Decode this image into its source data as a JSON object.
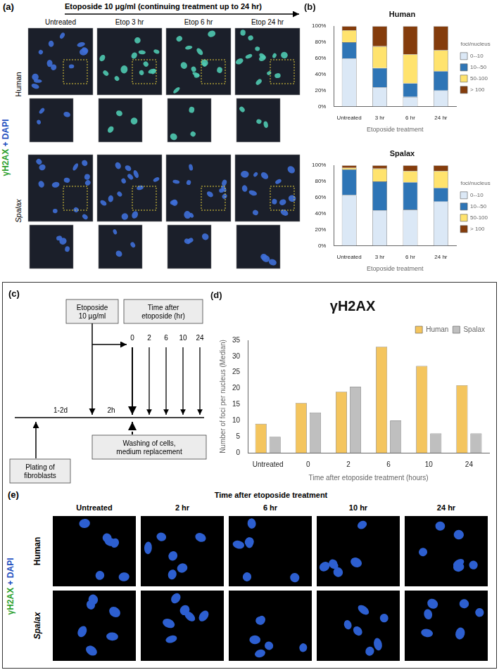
{
  "panel_a": {
    "label": "(a)",
    "header": "Etoposide 10 μg/ml  (continuing treatment up to 24 hr)",
    "stain": [
      "γH2AX",
      "+",
      "DAPI"
    ],
    "rows": [
      "Human",
      "Spalax"
    ],
    "columns": [
      "Untreated",
      "Etop 3 hr",
      "Etop 6 hr",
      "Etop 24 hr"
    ]
  },
  "chart_data": [
    {
      "type": "bar",
      "title": "Human",
      "annotations": [
        "(b)"
      ],
      "x_label": "Etoposide treatment",
      "categories": [
        "Untreated",
        "3 hr",
        "6 hr",
        "24 hr"
      ],
      "series": [
        {
          "name": "0--10",
          "color": "#dbe8f6",
          "values": [
            60,
            24,
            12,
            20
          ]
        },
        {
          "name": "10--50",
          "color": "#2e75b6",
          "values": [
            20,
            24,
            17,
            24
          ]
        },
        {
          "name": "50-100",
          "color": "#ffe36e",
          "values": [
            15,
            27,
            36,
            26
          ]
        },
        {
          "name": "> 100",
          "color": "#843c0c",
          "values": [
            5,
            25,
            35,
            30
          ]
        }
      ],
      "stacked": true,
      "legend": "right",
      "legend_title": "foci/nucleus",
      "grid": false,
      "ylim": [
        0,
        100
      ],
      "yticks": [
        {
          "value": 0,
          "label": "0%"
        },
        {
          "value": 20,
          "label": "20%"
        },
        {
          "value": 40,
          "label": "40%"
        },
        {
          "value": 60,
          "label": "60%"
        },
        {
          "value": 80,
          "label": "80%"
        },
        {
          "value": 100,
          "label": "100%"
        }
      ]
    },
    {
      "type": "bar",
      "title": "Spalax",
      "x_label": "Etoposide treatment",
      "categories": [
        "Untreated",
        "3 hr",
        "6 hr",
        "24 hr"
      ],
      "series": [
        {
          "name": "0--10",
          "color": "#dbe8f6",
          "values": [
            63,
            44,
            45,
            55
          ]
        },
        {
          "name": "10--50",
          "color": "#2e75b6",
          "values": [
            32,
            36,
            34,
            17
          ]
        },
        {
          "name": "50-100",
          "color": "#ffe36e",
          "values": [
            2,
            16,
            14,
            21
          ]
        },
        {
          "name": "> 100",
          "color": "#843c0c",
          "values": [
            3,
            4,
            7,
            7
          ]
        }
      ],
      "stacked": true,
      "legend": "right",
      "legend_title": "foci/nucleus",
      "grid": false,
      "ylim": [
        0,
        100
      ],
      "yticks": [
        {
          "value": 0,
          "label": "0%"
        },
        {
          "value": 20,
          "label": "20%"
        },
        {
          "value": 40,
          "label": "40%"
        },
        {
          "value": 60,
          "label": "60%"
        },
        {
          "value": 80,
          "label": "80%"
        },
        {
          "value": 100,
          "label": "100%"
        }
      ]
    },
    {
      "type": "bar",
      "title": "γH2AX",
      "annotations": [
        "(d)"
      ],
      "x_label": "Time after etoposide treatment (hours)",
      "y_label": "Number of foci per nucleus (Median)",
      "categories": [
        "Untreated",
        "0",
        "2",
        "6",
        "10",
        "24"
      ],
      "series": [
        {
          "name": "Human",
          "color": "#f4c55e",
          "values": [
            9,
            15.5,
            19,
            33,
            27,
            21
          ]
        },
        {
          "name": "Spalax",
          "color": "#bfbfbf",
          "values": [
            5,
            12.5,
            20.5,
            10,
            6,
            6
          ]
        }
      ],
      "stacked": false,
      "legend": "upper right",
      "grid": false,
      "ylim": [
        0,
        35
      ],
      "yticks": [
        0,
        5,
        10,
        15,
        20,
        25,
        30,
        35
      ]
    }
  ],
  "panel_c": {
    "label": "(c)",
    "boxes": {
      "etoposide": "Etoposide\n10 µg/ml",
      "time": "Time after\netoposide (hr)",
      "washing": "Washing of cells,\nmedium replacement",
      "plating": "Plating of\nfibroblasts"
    },
    "intervals": [
      "1-2d",
      "2h"
    ],
    "hours": [
      0,
      2,
      6,
      10,
      24
    ]
  },
  "panel_e": {
    "label": "(e)",
    "title": "Time after etoposide treatment",
    "stain": [
      "γH2AX",
      "+",
      "DAPI"
    ],
    "rows": [
      "Human",
      "Spalax"
    ],
    "columns": [
      "Untreated",
      "2 hr",
      "6 hr",
      "10 hr",
      "24 hr"
    ]
  }
}
